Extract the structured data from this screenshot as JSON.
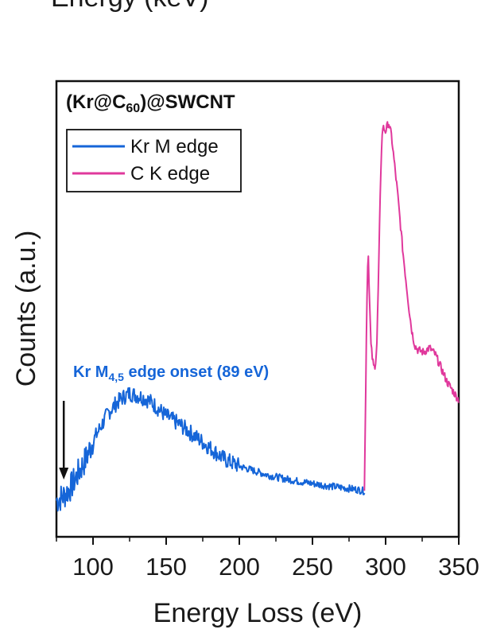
{
  "header_fragment": "Energy (keV)",
  "chart_data": {
    "type": "line",
    "title": "(Kr@C60)@SWCNT",
    "title_parts": {
      "prefix": "(Kr@C",
      "subscript": "60",
      "suffix": ")@SWCNT"
    },
    "xlabel": "Energy Loss (eV)",
    "ylabel": "Counts (a.u.)",
    "xlim": [
      75,
      350
    ],
    "ylim": [
      0,
      100
    ],
    "xticks": [
      100,
      150,
      200,
      250,
      300,
      350
    ],
    "grid": false,
    "legend": {
      "position": "top-left"
    },
    "series": [
      {
        "name": "Kr M edge",
        "color": "#1565d8",
        "noisy": true,
        "x": [
          75,
          80,
          85,
          90,
          95,
          100,
          105,
          110,
          115,
          120,
          125,
          130,
          135,
          140,
          145,
          150,
          160,
          170,
          180,
          190,
          200,
          210,
          220,
          230,
          240,
          250,
          260,
          270,
          280,
          286
        ],
        "y": [
          8,
          9,
          11,
          14,
          17,
          21,
          24,
          27,
          29,
          30.5,
          31.5,
          31,
          30.5,
          29.5,
          28,
          26.5,
          24.5,
          22,
          19.5,
          17,
          15.5,
          14.5,
          13.5,
          12.8,
          12.2,
          11.7,
          11.2,
          10.8,
          10.4,
          10
        ]
      },
      {
        "name": "C K edge",
        "color": "#e0389c",
        "noisy": true,
        "x": [
          285.5,
          286,
          287,
          288,
          289,
          290,
          291,
          292,
          293,
          294,
          295,
          296,
          297,
          298,
          300,
          302,
          304,
          306,
          308,
          310,
          312,
          314,
          316,
          318,
          320,
          322,
          326,
          330,
          334,
          338,
          342,
          346,
          350
        ],
        "y": [
          10,
          22,
          48,
          64,
          52,
          42,
          39,
          37,
          38,
          42,
          55,
          70,
          84,
          90,
          89,
          91,
          88,
          82,
          76,
          69,
          62,
          56,
          50,
          45,
          42,
          41,
          40.5,
          41.5,
          40,
          37,
          34,
          32,
          30
        ]
      }
    ],
    "annotations": [
      {
        "text_prefix": "Kr M",
        "text_subscript": "4,5",
        "text_suffix": " edge onset (89 eV)",
        "color": "#1565d8",
        "arrow_x": 80
      }
    ]
  }
}
